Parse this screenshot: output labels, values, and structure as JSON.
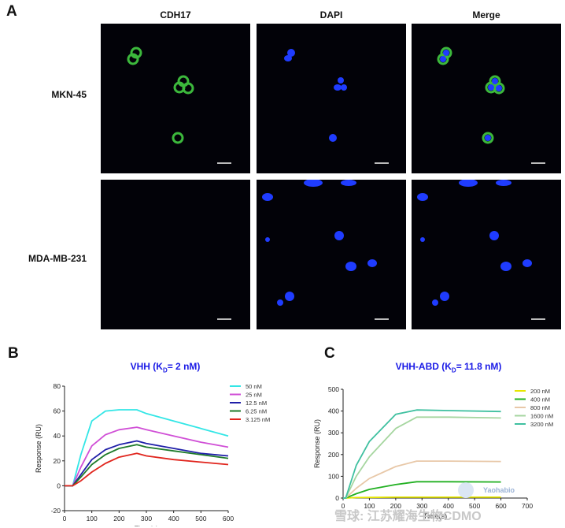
{
  "panel_a": {
    "letter": "A",
    "columns": [
      "CDH17",
      "DAPI",
      "Merge"
    ],
    "rows": [
      "MKN-45",
      "MDA-MB-231"
    ]
  },
  "chart_data": [
    {
      "panel": "B",
      "type": "line",
      "title_main": "VHH (K",
      "title_sub": "D",
      "title_rest": "= 2 nM)",
      "xlabel": "Time(s)",
      "ylabel": "Response (RU)",
      "xlim": [
        0,
        600
      ],
      "ylim": [
        -20,
        80
      ],
      "xticks": [
        0,
        100,
        200,
        300,
        400,
        500,
        600
      ],
      "yticks": [
        -20,
        0,
        20,
        40,
        60,
        80
      ],
      "legend_position": "top-right",
      "series": [
        {
          "name": "50 nM",
          "color": "#33e6e6",
          "points": [
            [
              0,
              0
            ],
            [
              30,
              0
            ],
            [
              60,
              25
            ],
            [
              100,
              52
            ],
            [
              150,
              60
            ],
            [
              200,
              61
            ],
            [
              265,
              61
            ],
            [
              300,
              58
            ],
            [
              400,
              52
            ],
            [
              500,
              46
            ],
            [
              600,
              40
            ]
          ]
        },
        {
          "name": "25 nM",
          "color": "#d04fd6",
          "points": [
            [
              0,
              0
            ],
            [
              30,
              0
            ],
            [
              60,
              15
            ],
            [
              100,
              32
            ],
            [
              150,
              41
            ],
            [
              200,
              45
            ],
            [
              265,
              47
            ],
            [
              300,
              45
            ],
            [
              400,
              40
            ],
            [
              500,
              35
            ],
            [
              600,
              31
            ]
          ]
        },
        {
          "name": "12.5 nM",
          "color": "#1f1fa8",
          "points": [
            [
              0,
              0
            ],
            [
              30,
              0
            ],
            [
              60,
              9
            ],
            [
              100,
              21
            ],
            [
              150,
              29
            ],
            [
              200,
              33
            ],
            [
              265,
              36
            ],
            [
              300,
              34
            ],
            [
              400,
              30
            ],
            [
              500,
              26
            ],
            [
              600,
              24
            ]
          ]
        },
        {
          "name": "6.25 nM",
          "color": "#1e7a2a",
          "points": [
            [
              0,
              0
            ],
            [
              30,
              0
            ],
            [
              60,
              7
            ],
            [
              100,
              17
            ],
            [
              150,
              25
            ],
            [
              200,
              30
            ],
            [
              265,
              33
            ],
            [
              300,
              31
            ],
            [
              400,
              28
            ],
            [
              500,
              25
            ],
            [
              600,
              22
            ]
          ]
        },
        {
          "name": "3.125 nM",
          "color": "#e0241c",
          "points": [
            [
              0,
              0
            ],
            [
              30,
              0
            ],
            [
              60,
              4
            ],
            [
              100,
              11
            ],
            [
              150,
              18
            ],
            [
              200,
              23
            ],
            [
              265,
              26
            ],
            [
              300,
              24
            ],
            [
              400,
              21
            ],
            [
              500,
              19
            ],
            [
              600,
              17
            ]
          ]
        }
      ]
    },
    {
      "panel": "C",
      "type": "line",
      "title_main": "VHH-ABD (K",
      "title_sub": "D",
      "title_rest": "= 11.8 nM)",
      "xlabel": "Time(s)",
      "ylabel": "Response (RU)",
      "xlim": [
        0,
        700
      ],
      "ylim": [
        0,
        500
      ],
      "xticks": [
        0,
        100,
        200,
        300,
        400,
        500,
        600,
        700
      ],
      "xtick_labels": [
        "0",
        "100",
        "200",
        "300",
        "400",
        "500",
        "600",
        "700"
      ],
      "yticks": [
        0,
        100,
        200,
        300,
        400,
        500
      ],
      "legend_position": "top-right",
      "series": [
        {
          "name": "200 nM",
          "color": "#e6e600",
          "points": [
            [
              0,
              0
            ],
            [
              10,
              0
            ],
            [
              50,
              2
            ],
            [
              100,
              3
            ],
            [
              200,
              4
            ],
            [
              280,
              4
            ],
            [
              400,
              4
            ],
            [
              600,
              4
            ]
          ]
        },
        {
          "name": "400 nM",
          "color": "#22b022",
          "points": [
            [
              0,
              0
            ],
            [
              10,
              0
            ],
            [
              50,
              20
            ],
            [
              100,
              40
            ],
            [
              200,
              62
            ],
            [
              280,
              75
            ],
            [
              400,
              75
            ],
            [
              600,
              74
            ]
          ]
        },
        {
          "name": "800 nM",
          "color": "#e8c8a8",
          "points": [
            [
              0,
              0
            ],
            [
              10,
              0
            ],
            [
              50,
              45
            ],
            [
              100,
              90
            ],
            [
              200,
              145
            ],
            [
              280,
              170
            ],
            [
              400,
              170
            ],
            [
              600,
              168
            ]
          ]
        },
        {
          "name": "1600 nM",
          "color": "#a6d6a0",
          "points": [
            [
              0,
              0
            ],
            [
              10,
              0
            ],
            [
              50,
              100
            ],
            [
              100,
              190
            ],
            [
              200,
              320
            ],
            [
              280,
              372
            ],
            [
              400,
              372
            ],
            [
              600,
              368
            ]
          ]
        },
        {
          "name": "3200 nM",
          "color": "#3fc0a0",
          "points": [
            [
              0,
              0
            ],
            [
              10,
              0
            ],
            [
              50,
              150
            ],
            [
              100,
              260
            ],
            [
              200,
              385
            ],
            [
              280,
              405
            ],
            [
              400,
              402
            ],
            [
              600,
              398
            ]
          ]
        }
      ]
    }
  ],
  "watermark": {
    "text": "雪球: 江苏耀海生物CDMO",
    "logo_text": "Yaohabio"
  }
}
